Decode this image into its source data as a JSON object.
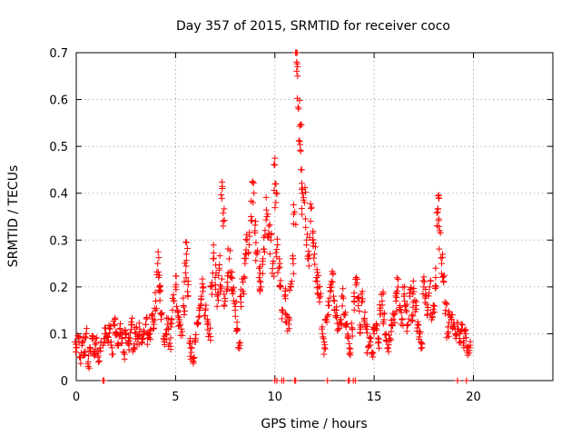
{
  "chart_data": {
    "type": "scatter",
    "title": "Day 357 of 2015, SRMTID for receiver coco",
    "xlabel": "GPS time / hours",
    "ylabel": "SRMTID / TECUs",
    "xlim": [
      0,
      24
    ],
    "ylim": [
      0,
      0.7
    ],
    "xticks": [
      0,
      5,
      10,
      15,
      20
    ],
    "yticks": [
      0,
      0.1,
      0.2,
      0.3,
      0.4,
      0.5,
      0.6,
      0.7
    ],
    "grid": true,
    "marker": "plus",
    "color": "#ff0000",
    "series": [
      {
        "name": "SRMTID",
        "points": [
          [
            0.0,
            0.07
          ],
          [
            0.1,
            0.09
          ],
          [
            0.2,
            0.05
          ],
          [
            0.3,
            0.08
          ],
          [
            0.4,
            0.06
          ],
          [
            0.5,
            0.1
          ],
          [
            0.6,
            0.04
          ],
          [
            0.7,
            0.07
          ],
          [
            0.8,
            0.09
          ],
          [
            0.9,
            0.06
          ],
          [
            1.0,
            0.08
          ],
          [
            1.1,
            0.05
          ],
          [
            1.2,
            0.07
          ],
          [
            1.4,
            0.09
          ],
          [
            1.5,
            0.1
          ],
          [
            1.6,
            0.08
          ],
          [
            1.7,
            0.11
          ],
          [
            1.8,
            0.07
          ],
          [
            1.9,
            0.12
          ],
          [
            2.0,
            0.1
          ],
          [
            2.1,
            0.08
          ],
          [
            2.2,
            0.11
          ],
          [
            2.3,
            0.09
          ],
          [
            2.4,
            0.06
          ],
          [
            2.5,
            0.1
          ],
          [
            2.6,
            0.08
          ],
          [
            2.7,
            0.09
          ],
          [
            2.8,
            0.12
          ],
          [
            2.9,
            0.07
          ],
          [
            3.0,
            0.1
          ],
          [
            3.1,
            0.09
          ],
          [
            3.2,
            0.11
          ],
          [
            3.3,
            0.08
          ],
          [
            3.4,
            0.1
          ],
          [
            3.5,
            0.12
          ],
          [
            3.6,
            0.09
          ],
          [
            3.7,
            0.1
          ],
          [
            3.8,
            0.14
          ],
          [
            3.9,
            0.12
          ],
          [
            4.0,
            0.17
          ],
          [
            4.1,
            0.25
          ],
          [
            4.15,
            0.22
          ],
          [
            4.2,
            0.19
          ],
          [
            4.3,
            0.14
          ],
          [
            4.4,
            0.09
          ],
          [
            4.5,
            0.1
          ],
          [
            4.6,
            0.12
          ],
          [
            4.7,
            0.08
          ],
          [
            4.8,
            0.13
          ],
          [
            4.9,
            0.17
          ],
          [
            5.0,
            0.2
          ],
          [
            5.1,
            0.15
          ],
          [
            5.2,
            0.13
          ],
          [
            5.3,
            0.11
          ],
          [
            5.4,
            0.16
          ],
          [
            5.5,
            0.23
          ],
          [
            5.55,
            0.27
          ],
          [
            5.6,
            0.19
          ],
          [
            5.7,
            0.08
          ],
          [
            5.8,
            0.06
          ],
          [
            5.9,
            0.04
          ],
          [
            6.0,
            0.09
          ],
          [
            6.1,
            0.12
          ],
          [
            6.2,
            0.15
          ],
          [
            6.3,
            0.18
          ],
          [
            6.4,
            0.2
          ],
          [
            6.5,
            0.15
          ],
          [
            6.6,
            0.12
          ],
          [
            6.7,
            0.1
          ],
          [
            6.8,
            0.2
          ],
          [
            6.9,
            0.26
          ],
          [
            7.0,
            0.22
          ],
          [
            7.1,
            0.18
          ],
          [
            7.2,
            0.24
          ],
          [
            7.3,
            0.2
          ],
          [
            7.35,
            0.41
          ],
          [
            7.4,
            0.33
          ],
          [
            7.5,
            0.17
          ],
          [
            7.6,
            0.21
          ],
          [
            7.7,
            0.26
          ],
          [
            7.8,
            0.22
          ],
          [
            7.9,
            0.19
          ],
          [
            8.0,
            0.15
          ],
          [
            8.1,
            0.11
          ],
          [
            8.2,
            0.08
          ],
          [
            8.3,
            0.18
          ],
          [
            8.4,
            0.21
          ],
          [
            8.5,
            0.25
          ],
          [
            8.6,
            0.3
          ],
          [
            8.7,
            0.29
          ],
          [
            8.8,
            0.35
          ],
          [
            8.9,
            0.38
          ],
          [
            9.0,
            0.32
          ],
          [
            9.1,
            0.27
          ],
          [
            9.2,
            0.22
          ],
          [
            9.3,
            0.2
          ],
          [
            9.4,
            0.26
          ],
          [
            9.5,
            0.31
          ],
          [
            9.6,
            0.35
          ],
          [
            9.7,
            0.33
          ],
          [
            9.8,
            0.3
          ],
          [
            9.9,
            0.25
          ],
          [
            10.0,
            0.46
          ],
          [
            10.05,
            0.38
          ],
          [
            10.1,
            0.28
          ],
          [
            10.2,
            0.24
          ],
          [
            10.3,
            0.2
          ],
          [
            10.4,
            0.15
          ],
          [
            10.5,
            0.18
          ],
          [
            10.6,
            0.14
          ],
          [
            10.7,
            0.12
          ],
          [
            10.8,
            0.2
          ],
          [
            10.9,
            0.26
          ],
          [
            11.0,
            0.36
          ],
          [
            11.1,
            0.68
          ],
          [
            11.15,
            0.65
          ],
          [
            11.2,
            0.58
          ],
          [
            11.3,
            0.49
          ],
          [
            11.35,
            0.45
          ],
          [
            11.4,
            0.4
          ],
          [
            11.5,
            0.38
          ],
          [
            11.6,
            0.3
          ],
          [
            11.7,
            0.26
          ],
          [
            11.8,
            0.34
          ],
          [
            11.9,
            0.3
          ],
          [
            12.0,
            0.27
          ],
          [
            12.1,
            0.22
          ],
          [
            12.2,
            0.2
          ],
          [
            12.3,
            0.18
          ],
          [
            12.4,
            0.1
          ],
          [
            12.5,
            0.07
          ],
          [
            12.6,
            0.13
          ],
          [
            12.7,
            0.16
          ],
          [
            12.8,
            0.19
          ],
          [
            12.9,
            0.21
          ],
          [
            13.0,
            0.17
          ],
          [
            13.1,
            0.15
          ],
          [
            13.2,
            0.11
          ],
          [
            13.3,
            0.13
          ],
          [
            13.4,
            0.18
          ],
          [
            13.5,
            0.14
          ],
          [
            13.6,
            0.12
          ],
          [
            13.7,
            0.09
          ],
          [
            13.8,
            0.06
          ],
          [
            13.9,
            0.11
          ],
          [
            14.0,
            0.17
          ],
          [
            14.1,
            0.22
          ],
          [
            14.2,
            0.16
          ],
          [
            14.3,
            0.11
          ],
          [
            14.4,
            0.17
          ],
          [
            14.5,
            0.13
          ],
          [
            14.6,
            0.11
          ],
          [
            14.7,
            0.07
          ],
          [
            14.8,
            0.09
          ],
          [
            14.9,
            0.06
          ],
          [
            15.0,
            0.1
          ],
          [
            15.1,
            0.12
          ],
          [
            15.2,
            0.08
          ],
          [
            15.3,
            0.15
          ],
          [
            15.4,
            0.17
          ],
          [
            15.5,
            0.13
          ],
          [
            15.6,
            0.1
          ],
          [
            15.7,
            0.07
          ],
          [
            15.8,
            0.09
          ],
          [
            15.9,
            0.12
          ],
          [
            16.0,
            0.14
          ],
          [
            16.1,
            0.17
          ],
          [
            16.2,
            0.2
          ],
          [
            16.3,
            0.16
          ],
          [
            16.4,
            0.13
          ],
          [
            16.5,
            0.18
          ],
          [
            16.6,
            0.15
          ],
          [
            16.7,
            0.12
          ],
          [
            16.8,
            0.18
          ],
          [
            16.9,
            0.14
          ],
          [
            17.0,
            0.19
          ],
          [
            17.1,
            0.16
          ],
          [
            17.2,
            0.12
          ],
          [
            17.3,
            0.1
          ],
          [
            17.4,
            0.08
          ],
          [
            17.5,
            0.2
          ],
          [
            17.6,
            0.18
          ],
          [
            17.7,
            0.15
          ],
          [
            17.8,
            0.2
          ],
          [
            17.9,
            0.13
          ],
          [
            18.0,
            0.16
          ],
          [
            18.1,
            0.22
          ],
          [
            18.2,
            0.36
          ],
          [
            18.25,
            0.39
          ],
          [
            18.3,
            0.32
          ],
          [
            18.4,
            0.25
          ],
          [
            18.5,
            0.21
          ],
          [
            18.6,
            0.15
          ],
          [
            18.7,
            0.1
          ],
          [
            18.8,
            0.14
          ],
          [
            18.9,
            0.13
          ],
          [
            19.0,
            0.12
          ],
          [
            19.1,
            0.1
          ],
          [
            19.2,
            0.11
          ],
          [
            19.3,
            0.09
          ],
          [
            19.4,
            0.11
          ],
          [
            19.5,
            0.08
          ],
          [
            19.6,
            0.1
          ],
          [
            19.7,
            0.06
          ],
          [
            19.8,
            0.07
          ]
        ]
      }
    ],
    "baseline_points": [
      1.35,
      1.4,
      10.0,
      10.1,
      10.35,
      10.45,
      11.0,
      11.05,
      12.65,
      13.7,
      13.75,
      13.95,
      14.05,
      19.2,
      19.65
    ]
  }
}
